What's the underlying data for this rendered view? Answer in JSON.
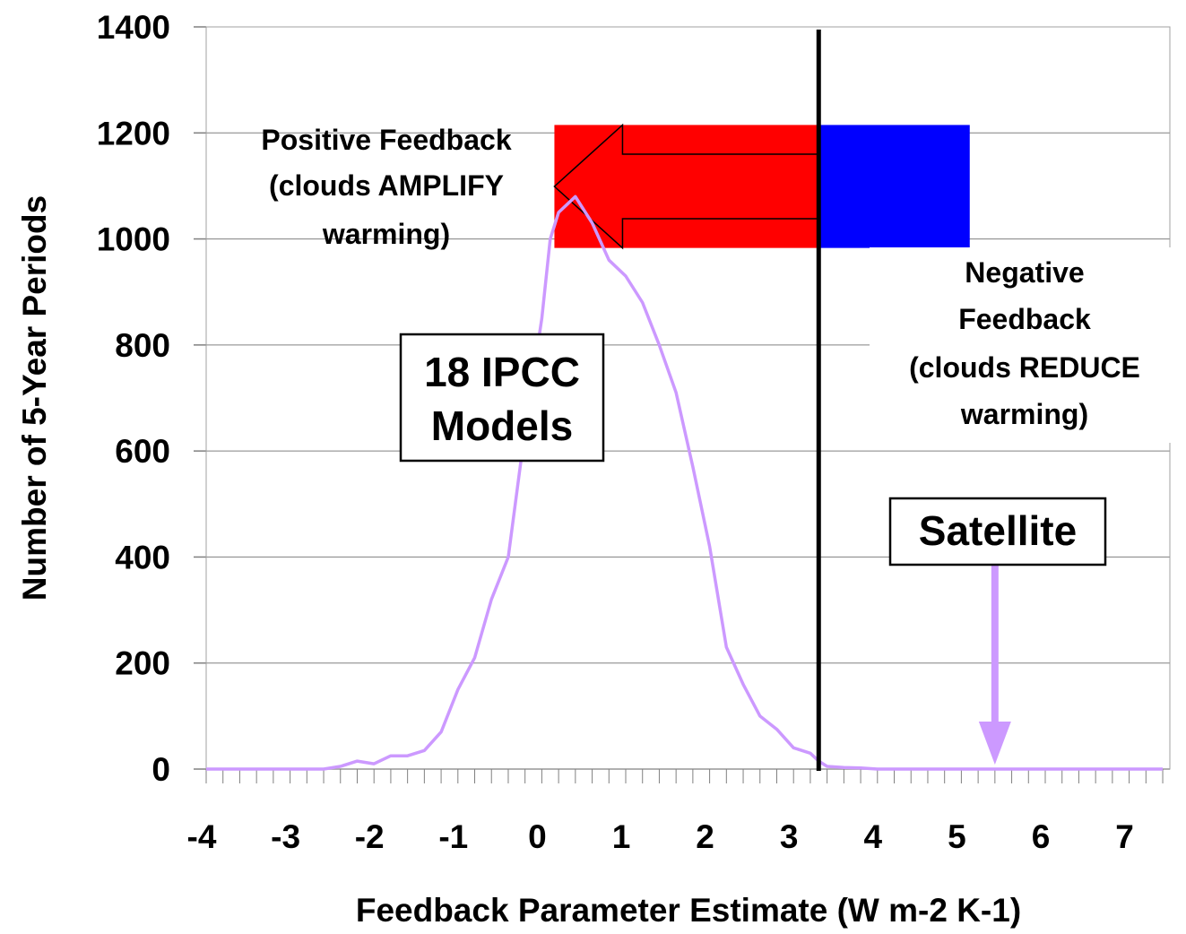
{
  "chart_data": {
    "type": "line",
    "title": "",
    "xlabel": "Feedback Parameter Estimate (W m-2 K-1)",
    "ylabel": "Number of 5-Year Periods",
    "xlim": [
      -4,
      7.4
    ],
    "ylim": [
      0,
      1400
    ],
    "x_ticks": [
      "-4",
      "-3",
      "-2",
      "-1",
      "0",
      "1",
      "2",
      "3",
      "4",
      "5",
      "6",
      "7"
    ],
    "y_ticks": [
      "0",
      "200",
      "400",
      "600",
      "800",
      "1000",
      "1200",
      "1400"
    ],
    "grid": "horizontal",
    "series": [
      {
        "name": "18 IPCC Models",
        "color": "#cc99ff",
        "x": [
          -4.0,
          -3.6,
          -3.2,
          -2.8,
          -2.6,
          -2.4,
          -2.2,
          -2.0,
          -1.8,
          -1.6,
          -1.4,
          -1.2,
          -1.0,
          -0.8,
          -0.6,
          -0.4,
          -0.2,
          0.0,
          0.1,
          0.2,
          0.4,
          0.6,
          0.8,
          1.0,
          1.2,
          1.4,
          1.6,
          1.8,
          2.0,
          2.2,
          2.4,
          2.6,
          2.8,
          3.0,
          3.2,
          3.3,
          3.4,
          3.6,
          3.8,
          4.0,
          4.4,
          5.0,
          5.4,
          6.0,
          6.6,
          7.4
        ],
        "y": [
          0,
          0,
          0,
          0,
          0,
          5,
          15,
          10,
          25,
          25,
          35,
          70,
          150,
          210,
          320,
          400,
          640,
          850,
          1000,
          1050,
          1080,
          1030,
          960,
          930,
          880,
          800,
          710,
          570,
          420,
          230,
          160,
          100,
          75,
          40,
          30,
          15,
          5,
          3,
          2,
          0,
          0,
          0,
          0,
          0,
          0,
          0
        ]
      }
    ],
    "reference_line": {
      "x": 3.3,
      "color": "#000000"
    },
    "feedback_bar": {
      "y_range": [
        983,
        1215
      ],
      "positive": {
        "x_range": [
          0.15,
          3.3
        ],
        "color": "#ff0000",
        "label_lines": [
          "Positive Feedback",
          "(clouds AMPLIFY",
          "warming)"
        ]
      },
      "negative": {
        "x_range": [
          3.3,
          5.1
        ],
        "color": "#0000ff",
        "label_lines": [
          "Negative",
          "Feedback",
          "(clouds REDUCE",
          "warming)"
        ]
      }
    },
    "annotations": [
      {
        "text_lines": [
          "18 IPCC",
          "Models"
        ]
      },
      {
        "text_lines": [
          "Satellite"
        ],
        "arrow_x": 5.4,
        "arrow_color": "#cc99ff"
      }
    ]
  }
}
